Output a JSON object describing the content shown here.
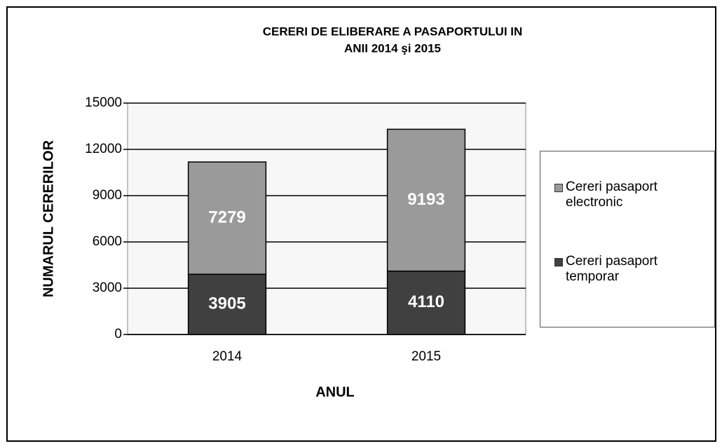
{
  "chart_data": {
    "type": "stacked_bar",
    "title": [
      "CERERI DE ELIBERARE A PASAPORTULUI IN",
      "ANII 2014 şi 2015"
    ],
    "y_label": "NUMARUL CERERILOR",
    "x_label": "ANUL",
    "categories": [
      "2014",
      "2015"
    ],
    "series": [
      {
        "name": "Cereri pasaport temporar",
        "color": "#404040",
        "values": [
          3905,
          4110
        ]
      },
      {
        "name": "Cereri pasaport electronic",
        "color": "#9a9a9a",
        "values": [
          7279,
          9193
        ]
      }
    ],
    "ylim": [
      0,
      15000
    ],
    "yticks": [
      0,
      3000,
      6000,
      9000,
      12000,
      15000
    ],
    "grid": true,
    "legend": "right"
  }
}
